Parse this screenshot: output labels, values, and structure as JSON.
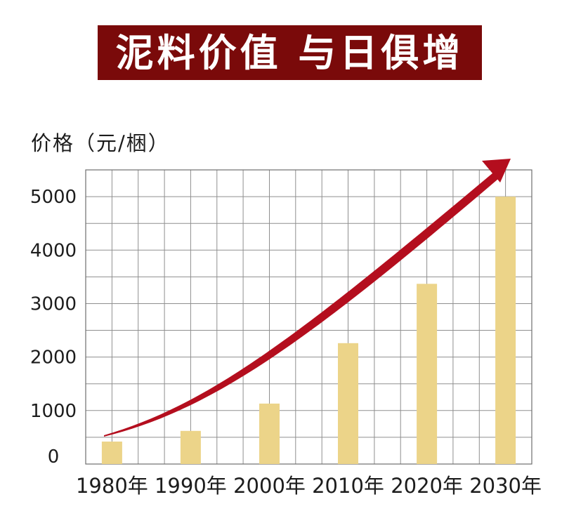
{
  "title": {
    "text": "泥料价值 与日俱增",
    "bg_color": "#7a0a0a",
    "text_color": "#ffffff"
  },
  "chart_data": {
    "type": "bar",
    "title": "泥料价值 与日俱增",
    "ylabel": "价格（元/梱）",
    "xlabel": "",
    "categories": [
      "1980年",
      "1990年",
      "2000年",
      "2010年",
      "2020年",
      "2030年"
    ],
    "values": [
      420,
      620,
      1130,
      2260,
      3370,
      5000
    ],
    "yticks": [
      0,
      1000,
      2000,
      3000,
      4000,
      5000
    ],
    "ylim": [
      0,
      5500
    ],
    "grid": true,
    "grid_columns": 17,
    "grid_rows": 11,
    "legend": false,
    "bar_color": "#ecd489",
    "grid_color": "#8f8f8f",
    "border_color": "#6e6e6e",
    "trend_arrow": true,
    "trend_arrow_color": "#b40e1e",
    "trend_note": "accelerating upward arrow from 1980 low to above 2030 bar"
  }
}
